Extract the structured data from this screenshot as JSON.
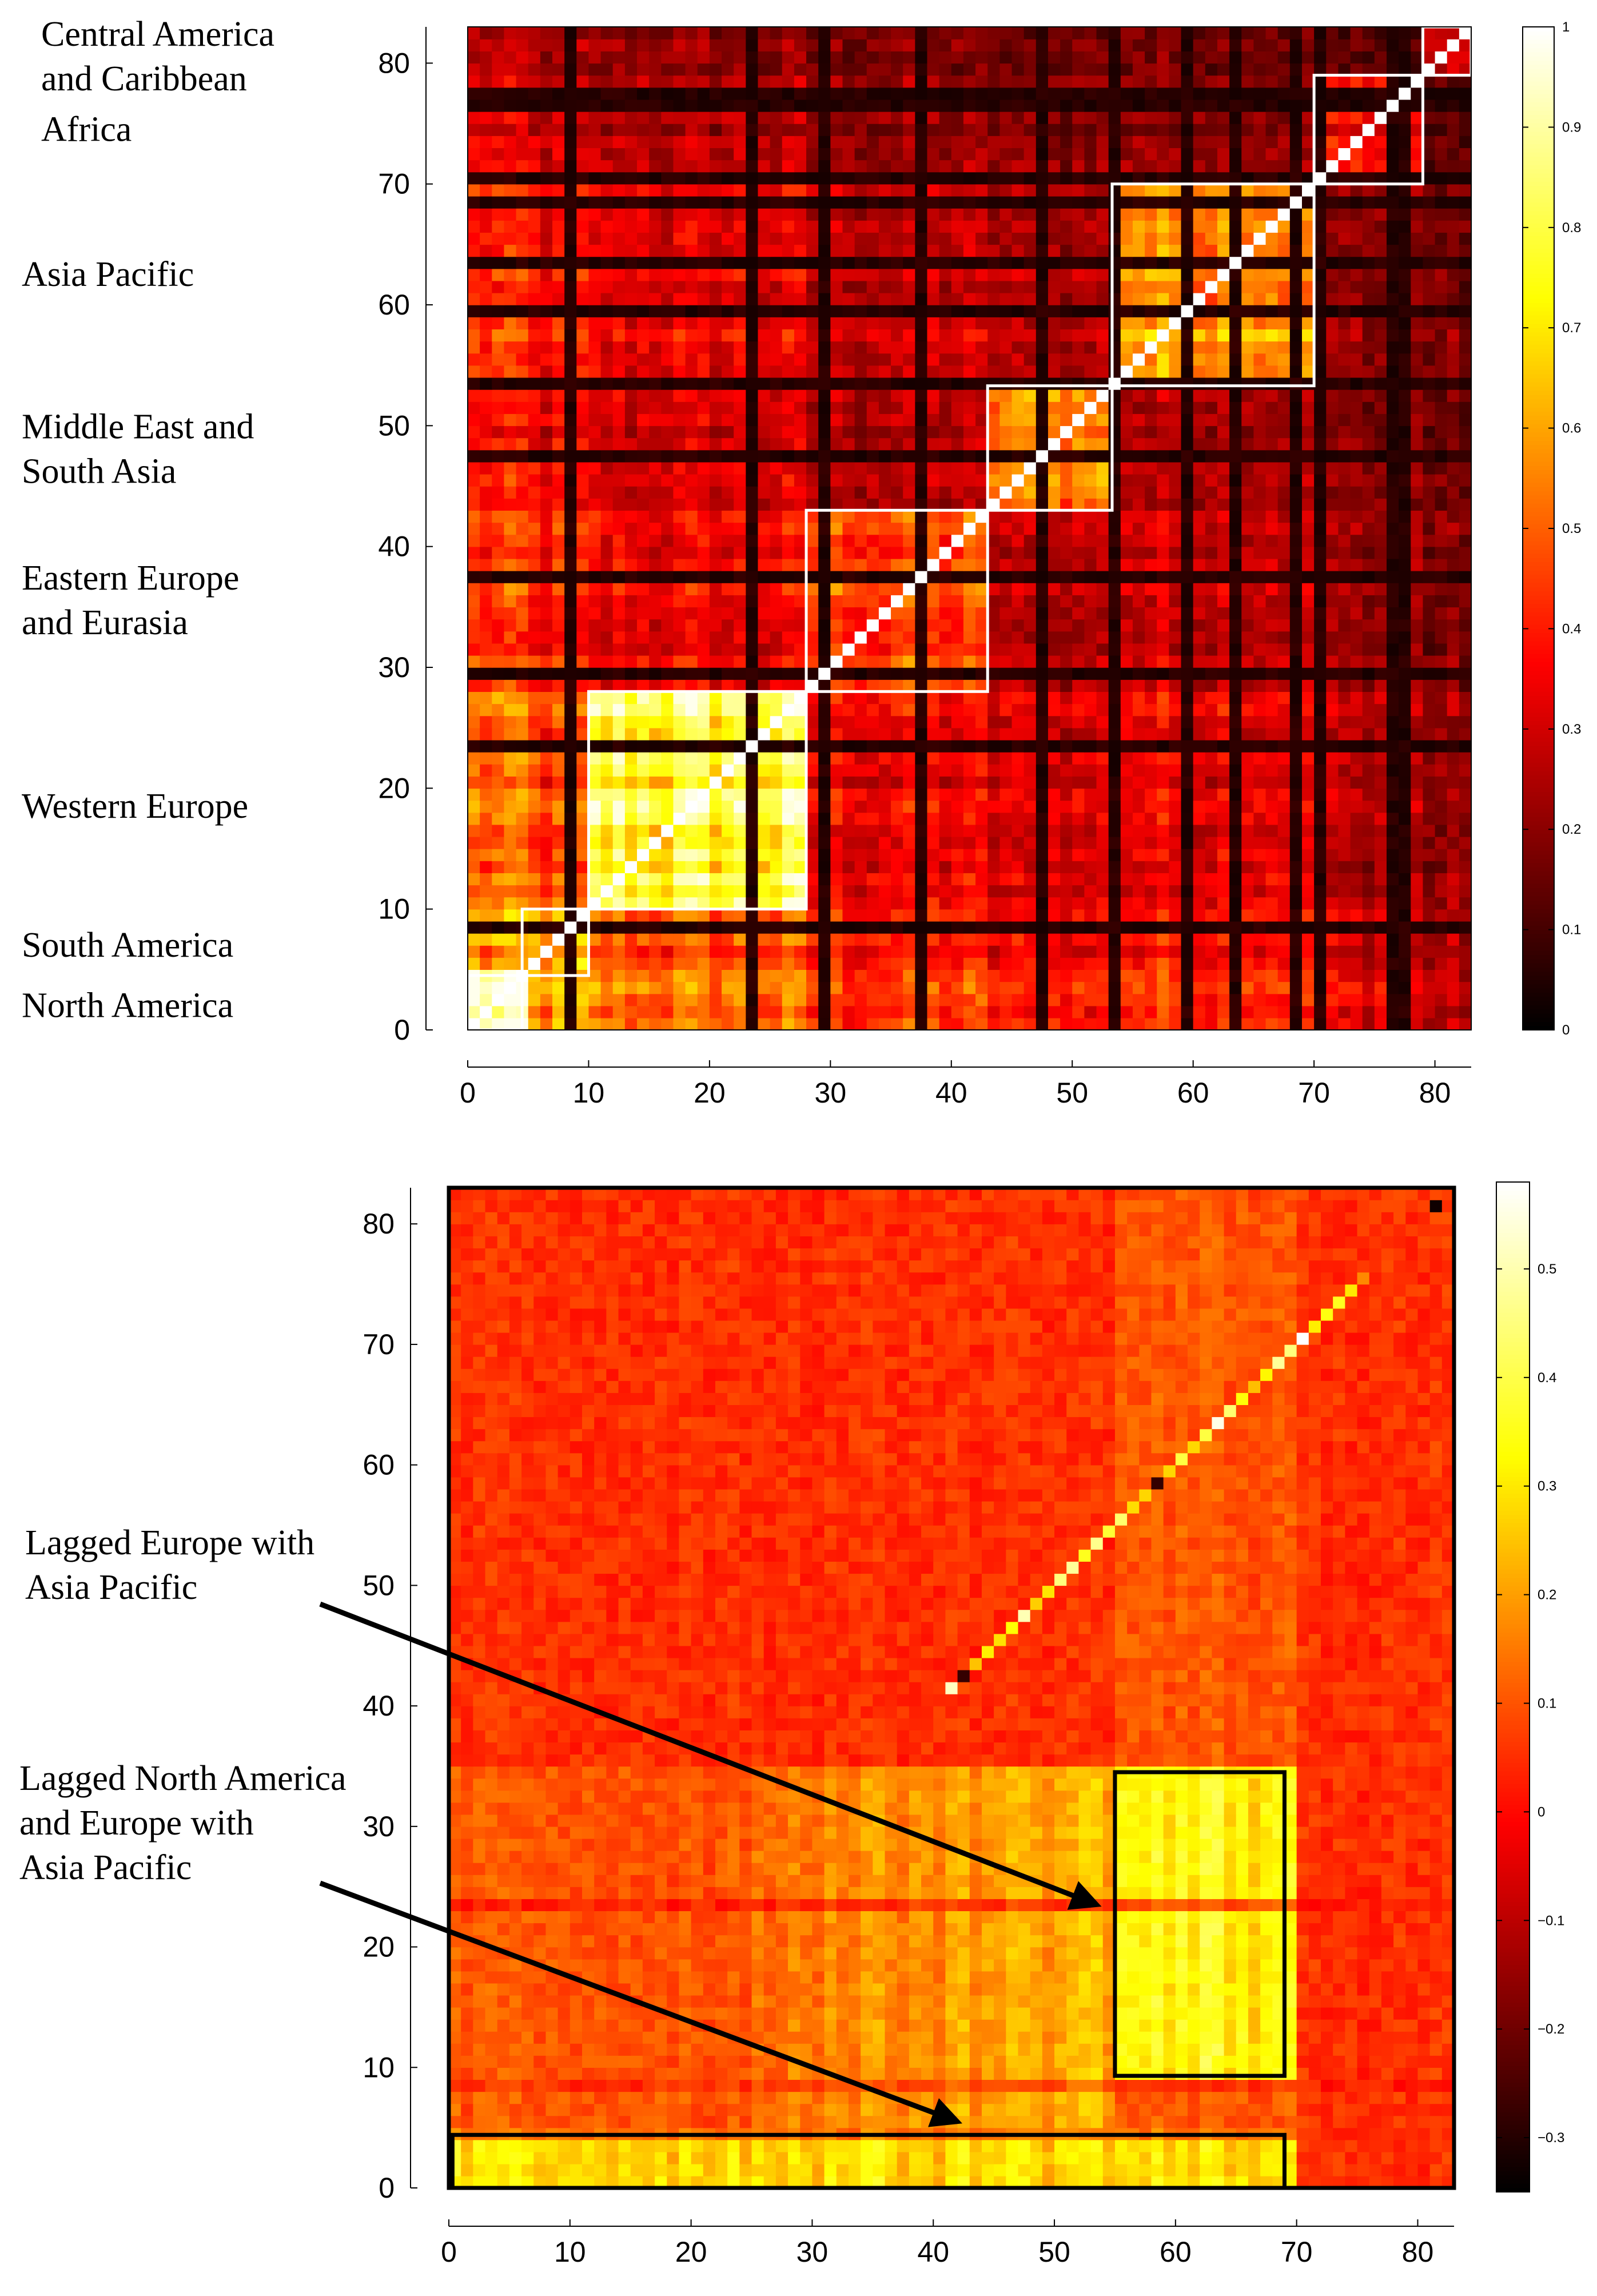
{
  "chart_data": [
    {
      "type": "heatmap",
      "description_id": "top-correlation-matrix",
      "xlim": [
        0,
        83
      ],
      "ylim": [
        0,
        83
      ],
      "x_ticks": [
        0,
        10,
        20,
        30,
        40,
        50,
        60,
        70,
        80
      ],
      "y_ticks": [
        0,
        10,
        20,
        30,
        40,
        50,
        60,
        70,
        80
      ],
      "colormap": "hot",
      "color_range": [
        0,
        1
      ],
      "colorbar_ticks": [
        "0",
        "0.1",
        "0.2",
        "0.3",
        "0.4",
        "0.5",
        "0.6",
        "0.7",
        "0.8",
        "0.9",
        "1"
      ],
      "diagonal_value": 1,
      "dark_lines": [
        8,
        23,
        29,
        37,
        47,
        53,
        59,
        63,
        68,
        70,
        76,
        77
      ],
      "region_blocks": [
        {
          "label": "North America",
          "start": 0,
          "end": 4.5
        },
        {
          "label": "South America",
          "start": 4.5,
          "end": 10
        },
        {
          "label": "Western Europe",
          "start": 10,
          "end": 28
        },
        {
          "label": "Eastern Europe\nand Eurasia",
          "start": 28,
          "end": 43
        },
        {
          "label": "Middle East and\nSouth Asia",
          "start": 43,
          "end": 53.3
        },
        {
          "label": "Asia Pacific",
          "start": 53.3,
          "end": 70
        },
        {
          "label": "Africa",
          "start": 70,
          "end": 79
        },
        {
          "label": "Central America\nand Caribbean",
          "start": 79,
          "end": 83
        }
      ],
      "region_labels": [
        {
          "text": "Central America\nand Caribbean",
          "y_value": 80.5
        },
        {
          "text": "Africa",
          "y_value": 74.5
        },
        {
          "text": "Asia Pacific",
          "y_value": 62.5
        },
        {
          "text": "Middle East and\nSouth Asia",
          "y_value": 48
        },
        {
          "text": "Eastern Europe\nand Eurasia",
          "y_value": 35.5
        },
        {
          "text": "Western Europe",
          "y_value": 18.5
        },
        {
          "text": "South America",
          "y_value": 7
        },
        {
          "text": "North America",
          "y_value": 2
        }
      ]
    },
    {
      "type": "heatmap",
      "description_id": "bottom-lagged-correlation-matrix",
      "xlim": [
        0,
        83
      ],
      "ylim": [
        0,
        83
      ],
      "x_ticks": [
        0,
        10,
        20,
        30,
        40,
        50,
        60,
        70,
        80
      ],
      "y_ticks": [
        0,
        10,
        20,
        30,
        40,
        50,
        60,
        70,
        80
      ],
      "colormap": "hot",
      "color_range": [
        -0.35,
        0.58
      ],
      "colorbar_ticks": [
        "-0.3",
        "-0.2",
        "-0.1",
        "0",
        "0.1",
        "0.2",
        "0.3",
        "0.4",
        "0.5"
      ],
      "highlight_boxes": [
        {
          "x_range": [
            55,
            69
          ],
          "y_range": [
            9.3,
            34.5
          ]
        },
        {
          "x_range": [
            0.3,
            69
          ],
          "y_range": [
            0,
            4.4
          ]
        }
      ],
      "annotations": [
        {
          "text": "Lagged Europe with\nAsia Pacific",
          "arrow_to": [
            53.5,
            23.5
          ]
        },
        {
          "text": "Lagged North America\nand Europe with\nAsia Pacific",
          "arrow_to": [
            42,
            5.5
          ]
        }
      ]
    }
  ]
}
